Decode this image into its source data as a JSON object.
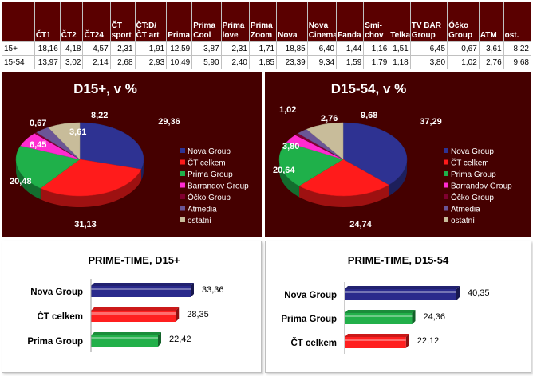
{
  "table": {
    "headers": [
      "ČT1",
      "ČT2",
      "ČT24",
      "ČT sport",
      "ČT:D/ ČT art",
      "Prima",
      "Prima Cool",
      "Prima love",
      "Prima Zoom",
      "Nova",
      "Nova Cinema",
      "Fanda",
      "Smí-chov",
      "Telka",
      "TV BAR Group",
      "Óčko Group",
      "ATM",
      "ost."
    ],
    "rows": [
      {
        "label": "15+",
        "values": [
          "18,16",
          "4,18",
          "4,57",
          "2,31",
          "1,91",
          "12,59",
          "3,87",
          "2,31",
          "1,71",
          "18,85",
          "6,40",
          "1,44",
          "1,16",
          "1,51",
          "6,45",
          "0,67",
          "3,61",
          "8,22"
        ]
      },
      {
        "label": "15-54",
        "values": [
          "13,97",
          "3,02",
          "2,14",
          "2,68",
          "2,93",
          "10,49",
          "5,90",
          "2,40",
          "1,85",
          "23,39",
          "9,34",
          "1,59",
          "1,79",
          "1,18",
          "3,80",
          "1,02",
          "2,76",
          "9,68"
        ]
      }
    ]
  },
  "chart_data": [
    {
      "type": "pie",
      "title": "D15+, v %",
      "labels": [
        "Nova Group",
        "ČT celkem",
        "Prima Group",
        "Barrandov Group",
        "Óčko Group",
        "Atmedia",
        "ostatní"
      ],
      "values": [
        29.36,
        31.13,
        20.48,
        6.45,
        0.67,
        3.61,
        8.22
      ],
      "value_labels": [
        "29,36",
        "31,13",
        "20,48",
        "6,45",
        "0,67",
        "3,61",
        "8,22"
      ],
      "colors": [
        "#2e3292",
        "#ff1b1b",
        "#1fb04a",
        "#ff2bd0",
        "#800030",
        "#6b5596",
        "#c8bc9a"
      ],
      "legend": "right"
    },
    {
      "type": "pie",
      "title": "D15-54, v %",
      "labels": [
        "Nova Group",
        "ČT celkem",
        "Prima Group",
        "Barrandov Group",
        "Óčko Group",
        "Atmedia",
        "ostatní"
      ],
      "values": [
        37.29,
        24.74,
        20.64,
        3.8,
        1.02,
        2.76,
        9.68
      ],
      "value_labels": [
        "37,29",
        "24,74",
        "20,64",
        "3,80",
        "1,02",
        "2,76",
        "9,68"
      ],
      "colors": [
        "#2e3292",
        "#ff1b1b",
        "#1fb04a",
        "#ff2bd0",
        "#800030",
        "#6b5596",
        "#c8bc9a"
      ],
      "legend": "right"
    },
    {
      "type": "bar",
      "orientation": "horizontal",
      "title": "PRIME-TIME, D15+",
      "categories": [
        "Nova Group",
        "ČT celkem",
        "Prima Group"
      ],
      "values": [
        33.36,
        28.35,
        22.42
      ],
      "value_labels": [
        "33,36",
        "28,35",
        "22,42"
      ],
      "colors": [
        "#2a2a8c",
        "#ff1f1f",
        "#22b04a"
      ]
    },
    {
      "type": "bar",
      "orientation": "horizontal",
      "title": "PRIME-TIME, D15-54",
      "categories": [
        "Nova Group",
        "Prima Group",
        "ČT celkem"
      ],
      "values": [
        40.35,
        24.36,
        22.12
      ],
      "value_labels": [
        "40,35",
        "24,36",
        "22,12"
      ],
      "colors": [
        "#2a2a8c",
        "#22b04a",
        "#ff1f1f"
      ]
    }
  ]
}
